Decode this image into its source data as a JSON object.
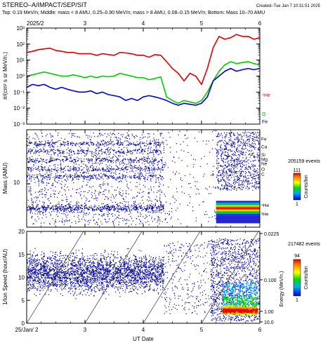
{
  "header": {
    "title": "STEREO–A/IMPACT/SEP/SIT",
    "created": "Created–Tue Jan  7 10:31:51 2025",
    "subtitle": "Top: 0.19 MeV/n; Middle: mass < 8 AMU, 0.25–0.90 MeV/n; mass > 8 AMU, 0.08–0.15 MeV/n; Bottom: Mass 10–70 AMU"
  },
  "x_axis": {
    "label": "UT Date",
    "start_label": "25/Jan/ 2",
    "top_start_label": "2025/2",
    "ticks": [
      "3",
      "4",
      "5",
      "6"
    ],
    "range": [
      2,
      6
    ]
  },
  "chart_data": [
    {
      "type": "line",
      "panel": "top",
      "ylabel": "#/(cm² s sr MeV/n.)",
      "yscale": "log",
      "ylim": [
        0.001,
        1000
      ],
      "yticks": [
        "10³",
        "10²",
        "10¹",
        "10⁰",
        "10⁻¹",
        "10⁻²",
        "10⁻³"
      ],
      "series": [
        {
          "name": "⁴He",
          "color": "#e00000",
          "x": [
            2.0,
            2.1,
            2.2,
            2.3,
            2.4,
            2.5,
            2.6,
            2.7,
            2.8,
            2.9,
            3.0,
            3.1,
            3.2,
            3.3,
            3.4,
            3.5,
            3.6,
            3.7,
            3.8,
            3.9,
            4.0,
            4.1,
            4.2,
            4.3,
            4.4,
            4.5,
            4.6,
            4.7,
            4.8,
            4.9,
            5.0,
            5.1,
            5.2,
            5.3,
            5.4,
            5.5,
            5.6,
            5.7,
            5.8,
            5.9,
            6.0
          ],
          "y": [
            30,
            35,
            45,
            50,
            55,
            40,
            35,
            30,
            30,
            25,
            25,
            25,
            20,
            25,
            22,
            20,
            30,
            28,
            25,
            20,
            20,
            15,
            22,
            20,
            8,
            3,
            1.5,
            0.5,
            1.5,
            1,
            0.3,
            3,
            60,
            300,
            200,
            250,
            400,
            300,
            300,
            200,
            250
          ]
        },
        {
          "name": "O",
          "color": "#00cc00",
          "x": [
            2.0,
            2.1,
            2.2,
            2.3,
            2.4,
            2.5,
            2.6,
            2.7,
            2.8,
            2.9,
            3.0,
            3.1,
            3.2,
            3.3,
            3.4,
            3.5,
            3.6,
            3.7,
            3.8,
            3.9,
            4.0,
            4.1,
            4.2,
            4.3,
            4.4,
            4.5,
            4.6,
            4.7,
            4.9,
            5.0,
            5.1,
            5.2,
            5.3,
            5.4,
            5.5,
            5.6,
            5.7,
            5.8,
            5.9,
            6.0
          ],
          "y": [
            1,
            1.2,
            1.5,
            1.8,
            1.5,
            1.2,
            1,
            1,
            1.2,
            1,
            0.8,
            1,
            0.8,
            1,
            0.9,
            1,
            1.5,
            1.2,
            1,
            0.8,
            0.8,
            0.6,
            0.7,
            0.9,
            0.05,
            0.03,
            0.02,
            0.03,
            0.02,
            0.03,
            0.1,
            0.5,
            2,
            5,
            8,
            6,
            7,
            8,
            6,
            5
          ]
        },
        {
          "name": "Fe",
          "color": "#0000dd",
          "x": [
            2.0,
            2.1,
            2.2,
            2.3,
            2.4,
            2.5,
            2.6,
            2.7,
            2.8,
            2.9,
            3.0,
            3.1,
            3.2,
            3.3,
            3.4,
            3.5,
            3.6,
            3.7,
            3.8,
            3.9,
            4.0,
            4.1,
            4.2,
            4.3,
            4.4,
            4.5,
            4.6,
            4.7,
            4.9,
            5.0,
            5.1,
            5.2,
            5.3,
            5.4,
            5.5,
            5.6,
            5.7,
            5.8,
            5.9,
            6.0
          ],
          "y": [
            0.2,
            0.3,
            0.25,
            0.3,
            0.2,
            0.15,
            0.2,
            0.15,
            0.12,
            0.1,
            0.1,
            0.12,
            0.08,
            0.1,
            0.07,
            0.06,
            0.05,
            0.03,
            0.04,
            0.03,
            0.05,
            0.06,
            0.05,
            0.04,
            0.03,
            0.02,
            0.015,
            0.02,
            0.015,
            0.02,
            0.05,
            0.5,
            1,
            2,
            3,
            2,
            2.5,
            3,
            2.5,
            3
          ]
        }
      ]
    },
    {
      "type": "scatter",
      "panel": "middle",
      "ylabel": "Mass (AMU)",
      "yscale": "log",
      "ytick_label": "10",
      "event_count": "205159 events",
      "colorbar": {
        "label": "Counts/bin",
        "max": "111",
        "min": "1"
      },
      "species": [
        "Fe",
        "Ca",
        "Si",
        "Mg",
        "Ne",
        "O",
        "C",
        "⁴He",
        "³He"
      ]
    },
    {
      "type": "scatter",
      "panel": "bottom",
      "ylabel": "1/Ion Speed (hour/AU)",
      "ylim": [
        0,
        20
      ],
      "yticks": [
        "0",
        "5",
        "10",
        "15",
        "20"
      ],
      "right_axis": {
        "label": "Energy (MeV/n.)",
        "ticks": [
          "0.0225",
          "0.100",
          "1.00",
          "10.0"
        ]
      },
      "event_count": "217482 events",
      "colorbar": {
        "label": "Counts/bin",
        "max": "94",
        "min": "1"
      }
    }
  ]
}
